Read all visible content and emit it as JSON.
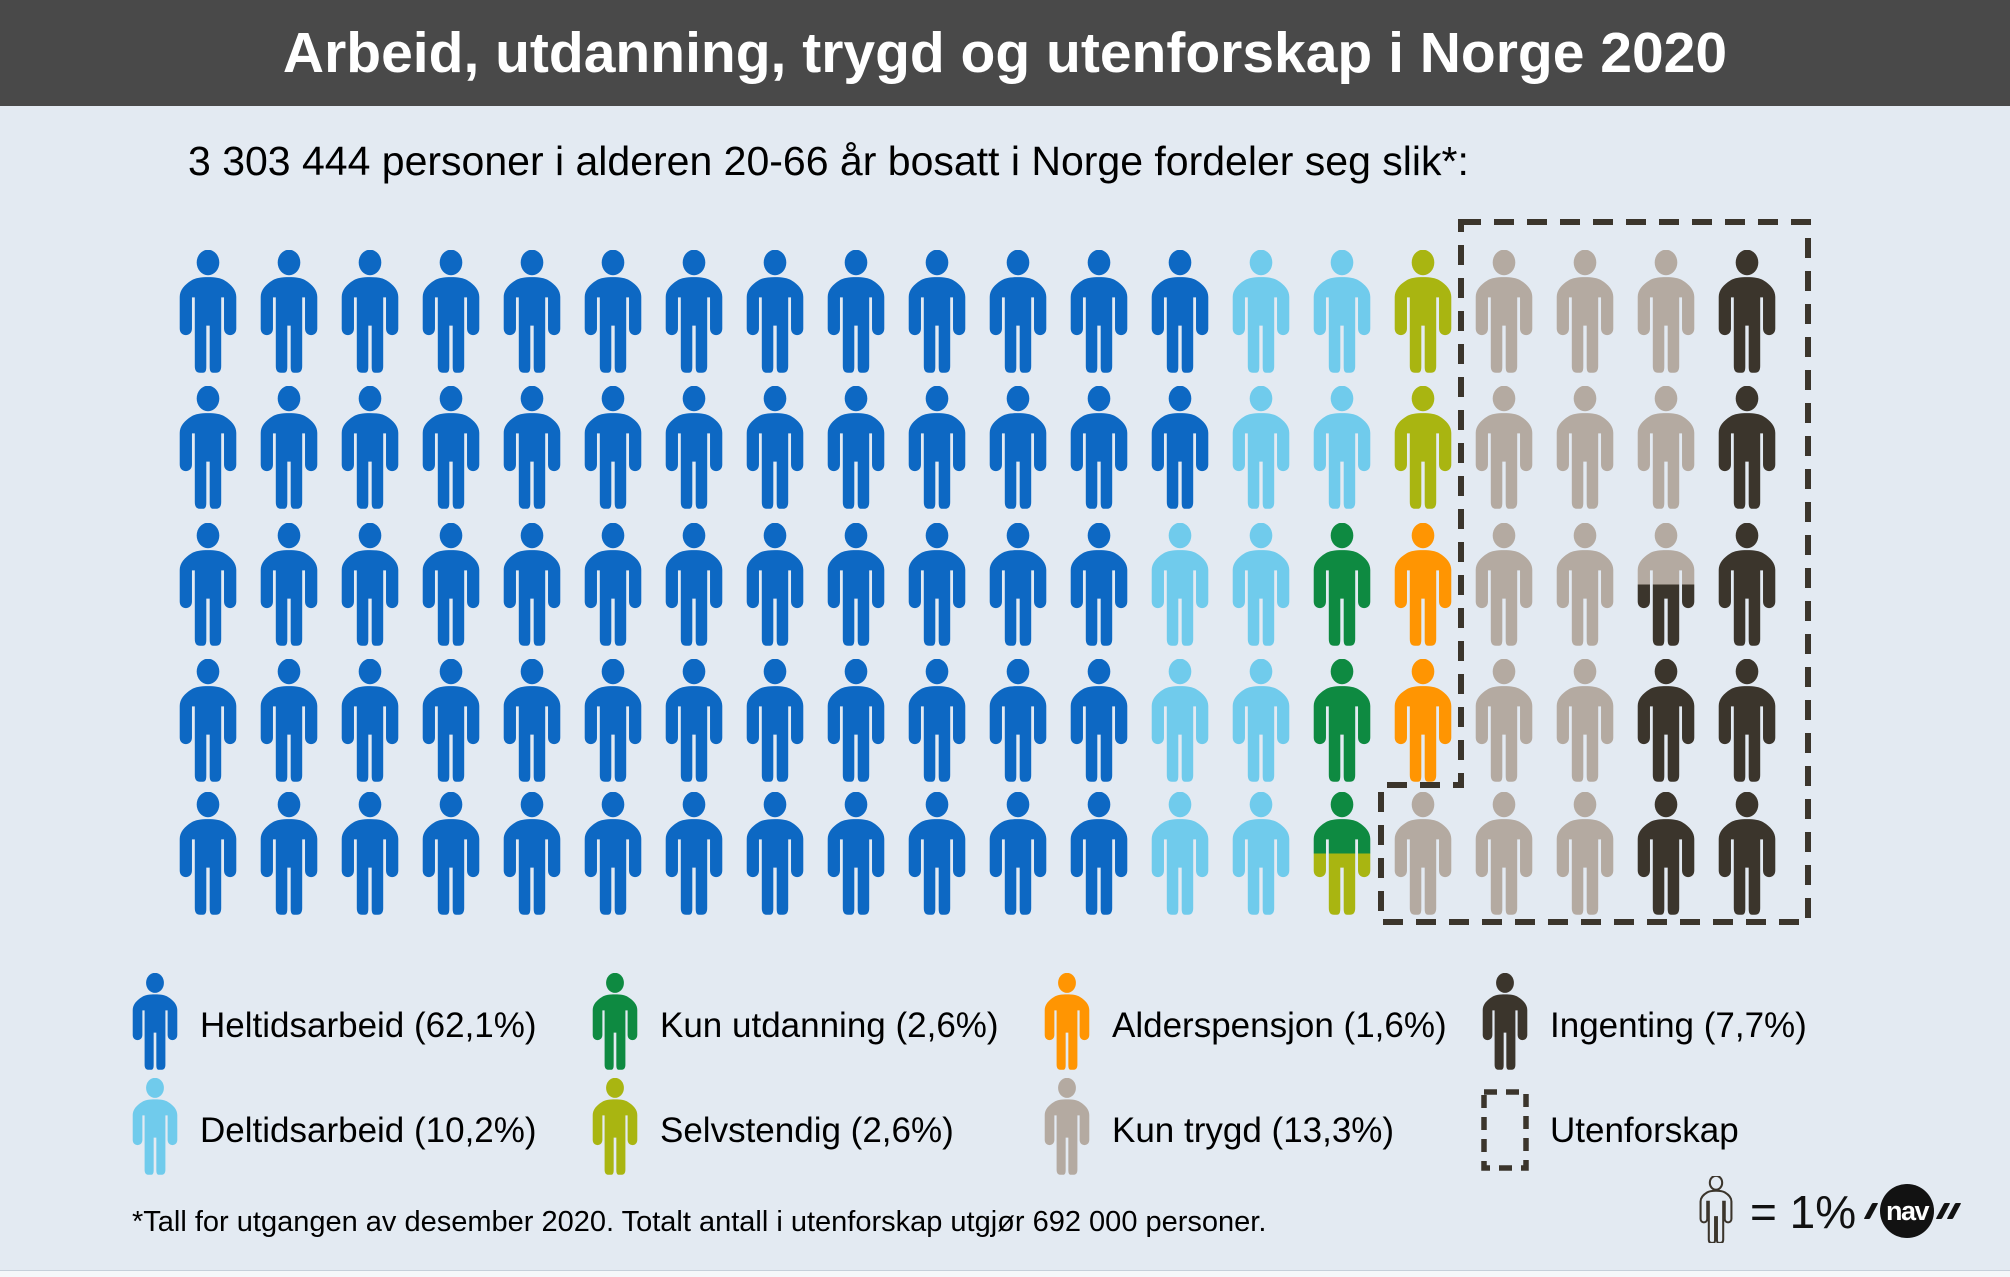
{
  "header": {
    "title": "Arbeid, utdanning, trygd og utenforskap i Norge 2020"
  },
  "subtitle": "3 303 444 personer i alderen 20-66 år bosatt i Norge fordeler seg slik*:",
  "colors": {
    "background": "#e3eaf2",
    "header_bg": "#494949",
    "heltid": "#0d68c3",
    "deltid": "#70cbec",
    "utdanning": "#0e8a41",
    "selvstendig": "#a9b511",
    "alderspensjon": "#ff9502",
    "trygd": "#b4aaa1",
    "ingenting": "#3b352c",
    "box": "#3b352c"
  },
  "chart_data": {
    "type": "pictogram",
    "title": "Arbeid, utdanning, trygd og utenforskap i Norge 2020",
    "population_label": "3 303 444 personer i alderen 20-66 år bosatt i Norge fordeler seg slik*:",
    "unit": "1 figure = 1%",
    "categories": [
      {
        "name": "Heltidsarbeid",
        "percent": 62.1,
        "color_key": "heltid"
      },
      {
        "name": "Deltidsarbeid",
        "percent": 10.2,
        "color_key": "deltid"
      },
      {
        "name": "Kun utdanning",
        "percent": 2.6,
        "color_key": "utdanning"
      },
      {
        "name": "Selvstendig",
        "percent": 2.6,
        "color_key": "selvstendig"
      },
      {
        "name": "Alderspensjon",
        "percent": 1.6,
        "color_key": "alderspensjon"
      },
      {
        "name": "Kun trygd",
        "percent": 13.3,
        "color_key": "trygd"
      },
      {
        "name": "Ingenting",
        "percent": 7.7,
        "color_key": "ingenting"
      }
    ],
    "outline_group": {
      "name": "Utenforskap",
      "figures_in_box": 21,
      "total_label": "692 000 personer"
    },
    "grid": {
      "rows": [
        [
          "heltid",
          "heltid",
          "heltid",
          "heltid",
          "heltid",
          "heltid",
          "heltid",
          "heltid",
          "heltid",
          "heltid",
          "heltid",
          "heltid",
          "heltid",
          "deltid",
          "deltid",
          "selvstendig",
          "trygd",
          "trygd",
          "trygd",
          "ingenting"
        ],
        [
          "heltid",
          "heltid",
          "heltid",
          "heltid",
          "heltid",
          "heltid",
          "heltid",
          "heltid",
          "heltid",
          "heltid",
          "heltid",
          "heltid",
          "heltid",
          "deltid",
          "deltid",
          "selvstendig",
          "trygd",
          "trygd",
          "trygd",
          "ingenting"
        ],
        [
          "heltid",
          "heltid",
          "heltid",
          "heltid",
          "heltid",
          "heltid",
          "heltid",
          "heltid",
          "heltid",
          "heltid",
          "heltid",
          "heltid",
          "deltid",
          "deltid",
          "utdanning",
          "alderspensjon",
          "trygd",
          "trygd",
          "trygd+ingenting",
          "ingenting"
        ],
        [
          "heltid",
          "heltid",
          "heltid",
          "heltid",
          "heltid",
          "heltid",
          "heltid",
          "heltid",
          "heltid",
          "heltid",
          "heltid",
          "heltid",
          "deltid",
          "deltid",
          "utdanning",
          "alderspensjon",
          "trygd",
          "trygd",
          "ingenting",
          "ingenting"
        ],
        [
          "heltid",
          "heltid",
          "heltid",
          "heltid",
          "heltid",
          "heltid",
          "heltid",
          "heltid",
          "heltid",
          "heltid",
          "heltid",
          "heltid",
          "deltid",
          "deltid",
          "utdanning+selvstendig",
          "trygd",
          "trygd",
          "trygd",
          "ingenting",
          "ingenting"
        ]
      ]
    }
  },
  "legend": {
    "items": [
      {
        "label": "Heltidsarbeid (62,1%)",
        "key": "heltid",
        "icon": "person"
      },
      {
        "label": "Kun utdanning (2,6%)",
        "key": "utdanning",
        "icon": "person"
      },
      {
        "label": "Alderspensjon (1,6%)",
        "key": "alderspensjon",
        "icon": "person"
      },
      {
        "label": "Ingenting (7,7%)",
        "key": "ingenting",
        "icon": "person"
      },
      {
        "label": "Deltidsarbeid (10,2%)",
        "key": "deltid",
        "icon": "person"
      },
      {
        "label": "Selvstendig (2,6%)",
        "key": "selvstendig",
        "icon": "person"
      },
      {
        "label": "Kun trygd (13,3%)",
        "key": "trygd",
        "icon": "person"
      },
      {
        "label": "Utenforskap",
        "key": "box",
        "icon": "dashed-box"
      }
    ]
  },
  "footnote": "*Tall for utgangen av desember 2020. Totalt antall i utenforskap utgjør 692 000 personer.",
  "scale": {
    "label": "= 1%"
  },
  "logo": {
    "text": "nav"
  }
}
